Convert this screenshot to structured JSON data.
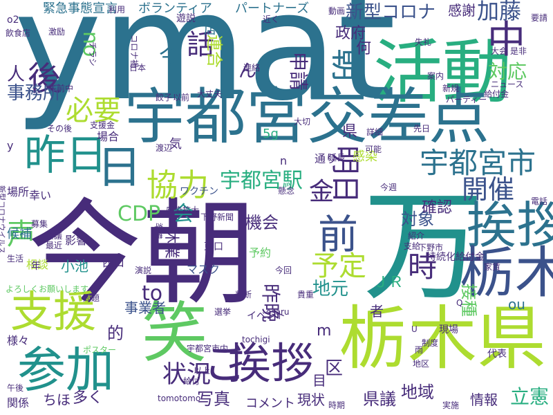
{
  "palette": {
    "dark_purple": "#472c7a",
    "indigo": "#3b528b",
    "blue": "#2c728e",
    "teal": "#21918c",
    "green": "#28ae80",
    "lime": "#5ec962",
    "yellow_green": "#addc30",
    "yellow": "#d8e219"
  },
  "words": [
    {
      "text": "ymat",
      "color": "#2c728e"
    },
    {
      "text": "今朝",
      "color": "#472c7a"
    },
    {
      "text": "万",
      "color": "#21918c"
    },
    {
      "text": "活動",
      "color": "#28ae80"
    },
    {
      "text": "宇都宮交差点",
      "color": "#2c728e"
    },
    {
      "text": "栃木県",
      "color": "#addc30"
    },
    {
      "text": "挨拶",
      "color": "#2c728e"
    },
    {
      "text": "笑",
      "color": "#5ec962"
    },
    {
      "text": "挨拶",
      "color": "#472c7a"
    },
    {
      "text": "参加",
      "color": "#21918c"
    },
    {
      "text": "支援",
      "color": "#addc30"
    },
    {
      "text": "栃木",
      "color": "#3b528b"
    },
    {
      "text": "ご",
      "color": "#472c7a"
    },
    {
      "text": "昨日",
      "color": "#21918c"
    },
    {
      "text": "日",
      "color": "#2c728e"
    },
    {
      "text": "協力",
      "color": "#addc30"
    },
    {
      "text": "宇都宮市",
      "color": "#2c728e"
    },
    {
      "text": "中",
      "color": "#472c7a"
    },
    {
      "text": "朝",
      "color": "#2c728e"
    },
    {
      "text": "必要",
      "color": "#addc30"
    },
    {
      "text": "前",
      "color": "#3b528b"
    },
    {
      "text": "時",
      "color": "#472c7a"
    },
    {
      "text": "予定",
      "color": "#addc30"
    },
    {
      "text": "状況",
      "color": "#472c7a"
    },
    {
      "text": "宇都宮駅",
      "color": "#28ae80"
    },
    {
      "text": "開催",
      "color": "#3b528b"
    },
    {
      "text": "対応",
      "color": "#5ec962"
    },
    {
      "text": "明日",
      "color": "#472c7a"
    },
    {
      "text": "後",
      "color": "#472c7a"
    },
    {
      "text": "話",
      "color": "#472c7a"
    },
    {
      "text": "声",
      "color": "#5ec962"
    },
    {
      "text": "新型コロナ",
      "color": "#3b528b"
    },
    {
      "text": "加藤",
      "color": "#3b528b"
    },
    {
      "text": "緊急事態宣言",
      "color": "#2c728e"
    },
    {
      "text": "ボランティア",
      "color": "#2c728e"
    },
    {
      "text": "パートナーズ",
      "color": "#2c728e"
    },
    {
      "text": "ん",
      "color": "#472c7a"
    },
    {
      "text": "人",
      "color": "#472c7a"
    },
    {
      "text": "事務所",
      "color": "#3b528b"
    },
    {
      "text": "no",
      "color": "#5ec962"
    },
    {
      "text": "今",
      "color": "#2c728e"
    },
    {
      "text": "申請",
      "color": "#472c7a"
    },
    {
      "text": "政府",
      "color": "#472c7a"
    },
    {
      "text": "何",
      "color": "#472c7a"
    },
    {
      "text": "感謝",
      "color": "#472c7a"
    },
    {
      "text": "連合",
      "color": "#addc30"
    },
    {
      "text": "店",
      "color": "#2c728e"
    },
    {
      "text": "遊説",
      "color": "#472c7a"
    },
    {
      "text": "金",
      "color": "#472c7a"
    },
    {
      "text": "会",
      "color": "#21918c"
    },
    {
      "text": "CDP",
      "color": "#5ec962"
    },
    {
      "text": "対象",
      "color": "#3b528b"
    },
    {
      "text": "機会",
      "color": "#472c7a"
    },
    {
      "text": "地元",
      "color": "#21918c"
    },
    {
      "text": "to",
      "color": "#472c7a"
    },
    {
      "text": "的",
      "color": "#472c7a"
    },
    {
      "text": "昨晩",
      "color": "#472c7a"
    },
    {
      "text": "ＪＲ",
      "color": "#28ae80"
    },
    {
      "text": "区",
      "color": "#472c7a"
    },
    {
      "text": "接種",
      "color": "#5ec962"
    },
    {
      "text": "立憲",
      "color": "#28ae80"
    },
    {
      "text": "確認",
      "color": "#472c7a"
    },
    {
      "text": "写真",
      "color": "#472c7a"
    },
    {
      "text": "県議",
      "color": "#472c7a"
    },
    {
      "text": "地域",
      "color": "#472c7a"
    },
    {
      "text": "情報",
      "color": "#472c7a"
    },
    {
      "text": "ちほ",
      "color": "#472c7a"
    },
    {
      "text": "多く",
      "color": "#472c7a"
    },
    {
      "text": "コメント",
      "color": "#472c7a"
    },
    {
      "text": "現状",
      "color": "#472c7a"
    },
    {
      "text": "事業者",
      "color": "#3b528b"
    },
    {
      "text": "者",
      "color": "#472c7a"
    },
    {
      "text": "ou",
      "color": "#2c728e"
    },
    {
      "text": "ワクチン",
      "color": "#3b528b"
    },
    {
      "text": "休業",
      "color": "#472c7a"
    },
    {
      "text": "マスク",
      "color": "#3b528b"
    },
    {
      "text": "小池",
      "color": "#21918c"
    },
    {
      "text": "相談",
      "color": "#addc30"
    },
    {
      "text": "影響",
      "color": "#472c7a"
    },
    {
      "text": "幸い",
      "color": "#472c7a"
    },
    {
      "text": "候補",
      "color": "#2c728e"
    },
    {
      "text": "場所",
      "color": "#472c7a"
    },
    {
      "text": "様々",
      "color": "#472c7a"
    },
    {
      "text": "関係",
      "color": "#472c7a"
    },
    {
      "text": "感染",
      "color": "#addc30"
    },
    {
      "text": "通り",
      "color": "#472c7a"
    },
    {
      "text": "5g",
      "color": "#28ae80"
    },
    {
      "text": "気",
      "color": "#472c7a"
    },
    {
      "text": "場合",
      "color": "#472c7a"
    },
    {
      "text": "支援金",
      "color": "#472c7a"
    },
    {
      "text": "その後",
      "color": "#472c7a"
    },
    {
      "text": "午前中",
      "color": "#472c7a"
    },
    {
      "text": "飲食店",
      "color": "#472c7a"
    },
    {
      "text": "連絡",
      "color": "#472c7a"
    },
    {
      "text": "日本",
      "color": "#472c7a"
    },
    {
      "text": "予約",
      "color": "#5ec962"
    },
    {
      "text": "西口",
      "color": "#472c7a"
    },
    {
      "text": "東口",
      "color": "#472c7a"
    },
    {
      "text": "選挙",
      "color": "#472c7a"
    },
    {
      "text": "イベント",
      "color": "#472c7a"
    },
    {
      "text": "給付金",
      "color": "#472c7a"
    },
    {
      "text": "持続化給付金",
      "color": "#472c7a"
    },
    {
      "text": "ニュース",
      "color": "#472c7a"
    },
    {
      "text": "大丈夫",
      "color": "#472c7a"
    },
    {
      "text": "感染拡大",
      "color": "#472c7a"
    },
    {
      "text": "下野新聞",
      "color": "#472c7a"
    },
    {
      "text": "よろしくお願いします",
      "color": "#5ec962"
    },
    {
      "text": "現場",
      "color": "#472c7a"
    },
    {
      "text": "代表",
      "color": "#472c7a"
    },
    {
      "text": "tochigi",
      "color": "#472c7a"
    },
    {
      "text": "osaru",
      "color": "#472c7a"
    },
    {
      "text": "tomotomo",
      "color": "#472c7a"
    },
    {
      "text": "宇都宮市内",
      "color": "#472c7a"
    },
    {
      "text": "ポスター",
      "color": "#5ec962"
    },
    {
      "text": "コロナ禍",
      "color": "#472c7a"
    },
    {
      "text": "チラシ",
      "color": "#472c7a"
    },
    {
      "text": "パーティー",
      "color": "#472c7a"
    },
    {
      "text": "新型コロナウイルス",
      "color": "#472c7a"
    },
    {
      "text": "今週",
      "color": "#472c7a"
    },
    {
      "text": "可能",
      "color": "#472c7a"
    },
    {
      "text": "延長",
      "color": "#472c7a"
    },
    {
      "text": "詳細",
      "color": "#472c7a"
    },
    {
      "text": "先日",
      "color": "#472c7a"
    },
    {
      "text": "大切",
      "color": "#472c7a"
    },
    {
      "text": "案内",
      "color": "#472c7a"
    },
    {
      "text": "新規",
      "color": "#472c7a"
    },
    {
      "text": "紹介",
      "color": "#472c7a"
    },
    {
      "text": "支給",
      "color": "#472c7a"
    },
    {
      "text": "下野市",
      "color": "#472c7a"
    },
    {
      "text": "家賃",
      "color": "#472c7a"
    },
    {
      "text": "以前",
      "color": "#472c7a"
    },
    {
      "text": "餃子",
      "color": "#472c7a"
    },
    {
      "text": "渡辺",
      "color": "#472c7a"
    },
    {
      "text": "募集",
      "color": "#472c7a"
    },
    {
      "text": "会議",
      "color": "#472c7a"
    },
    {
      "text": "最近",
      "color": "#472c7a"
    },
    {
      "text": "生活",
      "color": "#472c7a"
    },
    {
      "text": "午後",
      "color": "#472c7a"
    },
    {
      "text": "演説",
      "color": "#472c7a"
    },
    {
      "text": "問題",
      "color": "#472c7a"
    },
    {
      "text": "判断",
      "color": "#472c7a"
    },
    {
      "text": "貴重",
      "color": "#472c7a"
    },
    {
      "text": "制度",
      "color": "#472c7a"
    },
    {
      "text": "以上",
      "color": "#472c7a"
    },
    {
      "text": "給付",
      "color": "#472c7a"
    },
    {
      "text": "時期",
      "color": "#472c7a"
    },
    {
      "text": "実施",
      "color": "#472c7a"
    },
    {
      "text": "地区",
      "color": "#472c7a"
    },
    {
      "text": "雨",
      "color": "#472c7a"
    },
    {
      "text": "今回",
      "color": "#472c7a"
    },
    {
      "text": "懸念",
      "color": "#472c7a"
    },
    {
      "text": "準備",
      "color": "#472c7a"
    },
    {
      "text": "要請",
      "color": "#472c7a"
    },
    {
      "text": "大会",
      "color": "#472c7a"
    },
    {
      "text": "失礼",
      "color": "#472c7a"
    },
    {
      "text": "近く",
      "color": "#472c7a"
    },
    {
      "text": "動画",
      "color": "#472c7a"
    },
    {
      "text": "利用",
      "color": "#472c7a"
    },
    {
      "text": "激励",
      "color": "#472c7a"
    },
    {
      "text": "o2",
      "color": "#472c7a"
    },
    {
      "text": "電話",
      "color": "#472c7a"
    },
    {
      "text": "是非",
      "color": "#472c7a"
    },
    {
      "text": "m",
      "color": "#472c7a"
    },
    {
      "text": "n",
      "color": "#472c7a"
    },
    {
      "text": "y",
      "color": "#472c7a"
    },
    {
      "text": "Q",
      "color": "#472c7a"
    },
    {
      "text": "U",
      "color": "#472c7a"
    },
    {
      "text": "県",
      "color": "#472c7a"
    },
    {
      "text": "目",
      "color": "#472c7a"
    },
    {
      "text": "年",
      "color": "#472c7a"
    }
  ]
}
